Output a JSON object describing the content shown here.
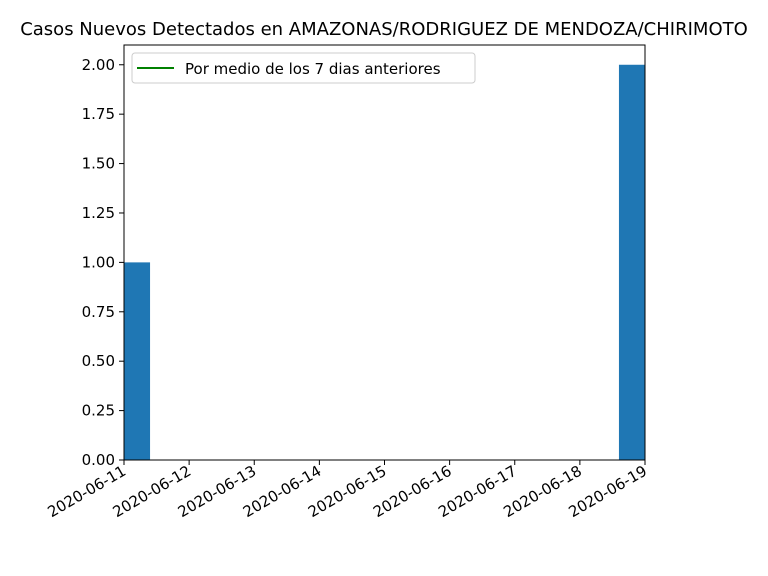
{
  "chart_data": {
    "type": "bar",
    "title": "Casos Nuevos Detectados en AMAZONAS/RODRIGUEZ DE MENDOZA/CHIRIMOTO",
    "xlabel": "",
    "ylabel": "",
    "categories": [
      "2020-06-11",
      "2020-06-19"
    ],
    "values": [
      1,
      2
    ],
    "x_ticks": [
      "2020-06-11",
      "2020-06-12",
      "2020-06-13",
      "2020-06-14",
      "2020-06-15",
      "2020-06-16",
      "2020-06-17",
      "2020-06-18",
      "2020-06-19"
    ],
    "y_ticks": [
      "0.00",
      "0.25",
      "0.50",
      "0.75",
      "1.00",
      "1.25",
      "1.50",
      "1.75",
      "2.00"
    ],
    "ylim": [
      0,
      2.1
    ],
    "xlim": [
      "2020-06-11",
      "2020-06-19"
    ],
    "bar_color": "#1f77b4",
    "legend": {
      "placement": "top-left",
      "entries": [
        {
          "label": "Por medio de los 7 dias anteriores",
          "color": "#008000",
          "marker": "line"
        }
      ]
    },
    "grid": false
  }
}
